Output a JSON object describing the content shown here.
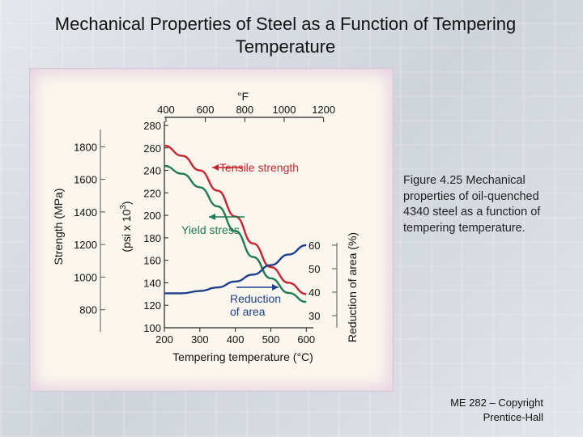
{
  "slide": {
    "title": "Mechanical Properties of Steel as a Function of Tempering Temperature",
    "caption": "Figure 4.25 Mechanical properties of oil-quenched 4340 steel as a function of tempering temperature.",
    "copyright_line1": "ME 282 – Copyright",
    "copyright_line2": "Prentice-Hall"
  },
  "chart_data": {
    "type": "line",
    "xlabel": "Tempering temperature (°C)",
    "x_ticks": [
      200,
      300,
      400,
      500,
      600
    ],
    "xlim": [
      200,
      620
    ],
    "top_axis_label": "°F",
    "top_ticks": [
      400,
      600,
      800,
      1000,
      1200
    ],
    "ylabel_left_outer": "Strength (MPa)",
    "left_outer_ticks": [
      800,
      1000,
      1200,
      1400,
      1600,
      1800
    ],
    "ylabel_left_inner": "(psi x 10³)",
    "ylabel_left_inner_base": "(psi x 10",
    "ylabel_left_inner_exp": "3",
    "ylabel_left_inner_close": ")",
    "ylim": [
      100,
      280
    ],
    "left_inner_ticks": [
      100,
      120,
      140,
      160,
      180,
      200,
      220,
      240,
      260,
      280
    ],
    "ylabel_right": "Reduction of area (%)",
    "right_ticks": [
      30,
      40,
      50,
      60
    ],
    "series": [
      {
        "name": "Tensile strength",
        "axis": "ksi",
        "color": "#c8242e",
        "x": [
          200,
          250,
          300,
          350,
          400,
          450,
          500,
          550,
          600
        ],
        "values": [
          262,
          253,
          240,
          222,
          199,
          175,
          154,
          140,
          130
        ]
      },
      {
        "name": "Yield stress",
        "axis": "ksi",
        "color": "#1f7a55",
        "x": [
          200,
          250,
          300,
          350,
          400,
          450,
          500,
          550,
          600
        ],
        "values": [
          244,
          237,
          225,
          208,
          186,
          163,
          144,
          131,
          123
        ]
      },
      {
        "name": "Reduction of area",
        "axis": "percent",
        "color": "#1e3f8c",
        "x": [
          200,
          250,
          300,
          350,
          400,
          450,
          500,
          550,
          600
        ],
        "values": [
          39.5,
          39.5,
          40.5,
          42,
          44.5,
          47.5,
          51.5,
          56,
          60
        ]
      }
    ],
    "annotations": [
      {
        "text": "Tensile strength",
        "color": "#c8242e"
      },
      {
        "text": "Yield stress",
        "color": "#1f7a55"
      },
      {
        "text": "Reduction",
        "text2": "of area",
        "color": "#1e3f8c"
      }
    ]
  }
}
